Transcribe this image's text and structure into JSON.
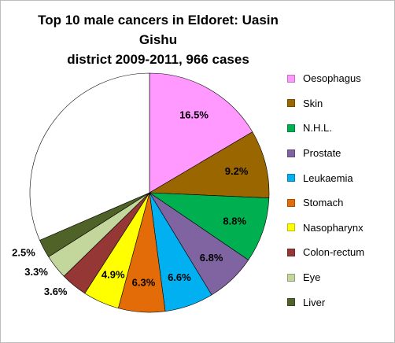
{
  "chart_data": {
    "type": "pie",
    "title": "Top 10 male cancers in Eldoret: Uasin Gishu district 2009-2011, 966 cases",
    "title_lines": [
      "Top 10 male cancers in Eldoret: Uasin Gishu",
      "district 2009-2011, 966 cases"
    ],
    "legend_position": "right",
    "slices": [
      {
        "label": "Oesophagus",
        "value": 16.5,
        "value_label": "16.5%",
        "color": "#ff99ff"
      },
      {
        "label": "Skin",
        "value": 9.2,
        "value_label": "9.2%",
        "color": "#996600"
      },
      {
        "label": "N.H.L.",
        "value": 8.8,
        "value_label": "8.8%",
        "color": "#00b050"
      },
      {
        "label": "Prostate",
        "value": 6.8,
        "value_label": "6.8%",
        "color": "#8064a2"
      },
      {
        "label": "Leukaemia",
        "value": 6.6,
        "value_label": "6.6%",
        "color": "#00b0f0"
      },
      {
        "label": "Stomach",
        "value": 6.3,
        "value_label": "6.3%",
        "color": "#e36c09"
      },
      {
        "label": "Nasopharynx",
        "value": 4.9,
        "value_label": "4.9%",
        "color": "#ffff00"
      },
      {
        "label": "Colon-rectum",
        "value": 3.6,
        "value_label": "3.6%",
        "color": "#953735"
      },
      {
        "label": "Eye",
        "value": 3.3,
        "value_label": "3.3%",
        "color": "#c3d69b"
      },
      {
        "label": "Liver",
        "value": 2.5,
        "value_label": "2.5%",
        "color": "#4f6228"
      }
    ],
    "remainder": {
      "value": 31.5,
      "color": "#ffffff"
    }
  }
}
